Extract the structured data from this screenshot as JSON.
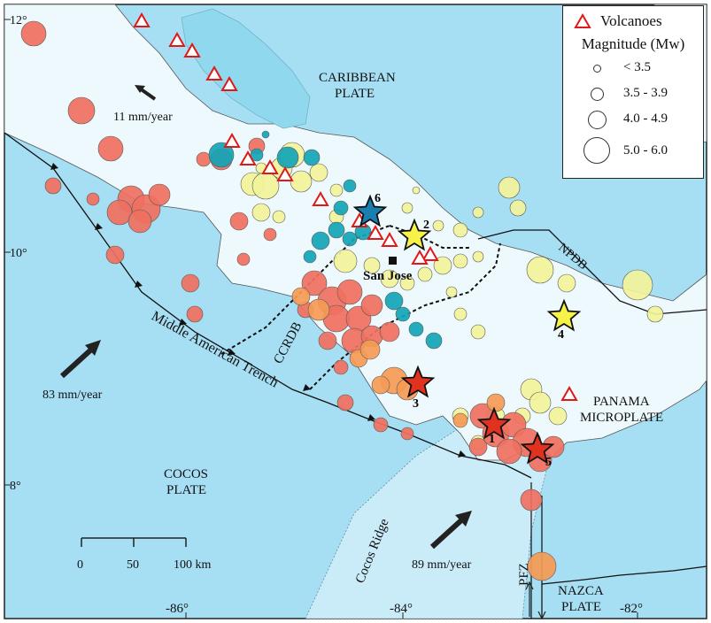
{
  "legend": {
    "volcano_label": "Volcanoes",
    "magnitude_title": "Magnitude (Mw)",
    "sizes": [
      "< 3.5",
      "3.5 - 3.9",
      "4.0 - 4.9",
      "5.0 - 6.0"
    ]
  },
  "plates": {
    "caribbean_line1": "CARIBBEAN",
    "caribbean_line2": "PLATE",
    "panama_line1": "PANAMA",
    "panama_line2": "MICROPLATE",
    "cocos_line1": "COCOS",
    "cocos_line2": "PLATE",
    "nazca_line1": "NAZCA",
    "nazca_line2": "PLATE"
  },
  "features": {
    "trench": "Middle American Trench",
    "ccrdb": "CCRDB",
    "npdb": "NPDB",
    "cocos_ridge": "Cocos Ridge",
    "pfz": "PFZ",
    "city": "San Jose"
  },
  "velocities": {
    "caribbean": "11 mm/year",
    "cocos_west": "83 mm/year",
    "cocos_east": "89 mm/year"
  },
  "scale_bar": {
    "ticks": [
      "0",
      "50",
      "100 km"
    ]
  },
  "axes": {
    "lat_labels": [
      "12°",
      "10°",
      "8°"
    ],
    "lon_labels": [
      "-86°",
      "-84°",
      "-82°"
    ]
  },
  "stars": [
    "1",
    "2",
    "3",
    "4",
    "5",
    "6"
  ],
  "colors": {
    "ocean": "#a6def3",
    "land": "#eef9fd",
    "lake": "#8fd8ee",
    "ridge": "#c9ecf8",
    "red_quake": "#f07060",
    "orange_quake": "#f59a55",
    "yellow_quake": "#f2f39a",
    "teal_quake": "#12a4b6",
    "volcano": "#e01818"
  }
}
